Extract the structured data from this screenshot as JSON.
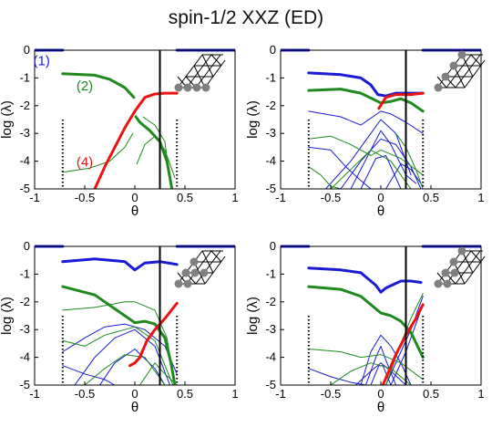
{
  "title": "spin-1/2 XXZ (ED)",
  "colors": {
    "blue": "#1a1ad6",
    "green": "#1e8a1e",
    "red": "#ee1111",
    "black": "#000000",
    "lattice": "#808080"
  },
  "chart_data": [
    {
      "type": "line",
      "xlabel": "θ",
      "ylabel": "log (λ)",
      "xlim": [
        -1,
        1
      ],
      "ylim": [
        -5,
        0
      ],
      "xticks": [
        "-1",
        "-0.5",
        "0",
        "0.5",
        "1"
      ],
      "yticks": [
        "0",
        "-1",
        "-2",
        "-3",
        "-4",
        "-5"
      ],
      "vlines": {
        "dotted": [
          -0.72,
          0.42
        ],
        "solid": 0.25
      },
      "annotations": [
        {
          "text": "(1)",
          "x": -0.93,
          "y": -0.55,
          "color": "blue"
        },
        {
          "text": "(2)",
          "x": -0.5,
          "y": -1.45,
          "color": "green"
        },
        {
          "text": "(4)",
          "x": -0.5,
          "y": -4.2,
          "color": "red"
        }
      ],
      "series": [
        {
          "color": "blue",
          "width": 3,
          "x": [
            -1,
            -0.72
          ],
          "y": [
            0,
            0
          ]
        },
        {
          "color": "blue",
          "width": 3,
          "x": [
            0.42,
            1
          ],
          "y": [
            0,
            0
          ]
        },
        {
          "color": "green",
          "width": 3,
          "x": [
            -0.72,
            -0.4,
            -0.25,
            -0.1,
            -0.01
          ],
          "y": [
            -0.85,
            -0.9,
            -1.05,
            -1.35,
            -1.7
          ]
        },
        {
          "color": "green",
          "width": 3,
          "x": [
            0.01,
            0.05,
            0.15,
            0.25,
            0.32,
            0.37
          ],
          "y": [
            -2.4,
            -2.6,
            -2.9,
            -3.3,
            -4.0,
            -5
          ]
        },
        {
          "color": "red",
          "width": 3,
          "x": [
            -0.4,
            -0.3,
            -0.2,
            -0.1,
            0,
            0.1,
            0.2,
            0.3,
            0.42
          ],
          "y": [
            -5,
            -4.2,
            -3.5,
            -2.8,
            -2.2,
            -1.7,
            -1.58,
            -1.55,
            -1.55
          ]
        },
        {
          "color": "green",
          "width": 1,
          "x": [
            -0.72,
            -0.45,
            -0.25,
            -0.1,
            -0.02
          ],
          "y": [
            -4.4,
            -4.25,
            -4.0,
            -3.5,
            -3.0
          ]
        },
        {
          "color": "green",
          "width": 1,
          "x": [
            0.02,
            0.1,
            0.2,
            0.3,
            0.4
          ],
          "y": [
            -4.1,
            -3.4,
            -3.1,
            -3.6,
            -4.6
          ]
        },
        {
          "color": "green",
          "width": 1,
          "x": [
            0.08,
            0.2,
            0.3,
            0.36
          ],
          "y": [
            -2.4,
            -2.7,
            -3.3,
            -5
          ]
        }
      ]
    },
    {
      "type": "line",
      "xlabel": "θ",
      "ylabel": "log (λ)",
      "xlim": [
        -1,
        1
      ],
      "ylim": [
        -5,
        0
      ],
      "xticks": [
        "-1",
        "-0.5",
        "0",
        "0.5",
        "1"
      ],
      "yticks": [
        "0",
        "-1",
        "-2",
        "-3",
        "-4",
        "-5"
      ],
      "vlines": {
        "dotted": [
          -0.72,
          0.42
        ],
        "solid": 0.25
      },
      "annotations": [],
      "series": [
        {
          "color": "blue",
          "width": 3,
          "x": [
            -1,
            -0.72
          ],
          "y": [
            0,
            0
          ]
        },
        {
          "color": "blue",
          "width": 3,
          "x": [
            0.42,
            1
          ],
          "y": [
            0,
            0
          ]
        },
        {
          "color": "blue",
          "width": 3,
          "x": [
            -0.72,
            -0.4,
            -0.2,
            -0.1,
            -0.03,
            0.05,
            0.15,
            0.3,
            0.42
          ],
          "y": [
            -0.82,
            -0.88,
            -1.0,
            -1.25,
            -1.6,
            -1.65,
            -1.55,
            -1.55,
            -1.55
          ]
        },
        {
          "color": "green",
          "width": 3,
          "x": [
            -0.72,
            -0.4,
            -0.2,
            0,
            0.1,
            0.2,
            0.3,
            0.42
          ],
          "y": [
            -1.45,
            -1.4,
            -1.55,
            -1.9,
            -1.85,
            -1.75,
            -1.9,
            -2.2
          ]
        },
        {
          "color": "red",
          "width": 3,
          "x": [
            -0.02,
            0.05,
            0.15,
            0.3,
            0.42
          ],
          "y": [
            -2.1,
            -1.7,
            -1.6,
            -1.6,
            -1.55
          ]
        },
        {
          "color": "blue",
          "width": 1,
          "x": [
            -0.72,
            -0.4,
            -0.2,
            0,
            0.1,
            0.25,
            0.42
          ],
          "y": [
            -2.2,
            -2.4,
            -2.7,
            -2.2,
            -2.3,
            -2.6,
            -3.0
          ]
        },
        {
          "color": "blue",
          "width": 1,
          "x": [
            -0.55,
            -0.3,
            -0.1,
            0,
            0.15,
            0.3
          ],
          "y": [
            -5,
            -4.0,
            -3.0,
            -2.5,
            -3.0,
            -4.5
          ]
        },
        {
          "color": "blue",
          "width": 1,
          "x": [
            -0.4,
            -0.2,
            0,
            0.15,
            0.3,
            0.4
          ],
          "y": [
            -5,
            -4.0,
            -3.2,
            -3.4,
            -4.2,
            -5
          ]
        },
        {
          "color": "blue",
          "width": 1,
          "x": [
            -0.2,
            -0.05,
            0.05,
            0.2
          ],
          "y": [
            -5,
            -3.9,
            -3.8,
            -5
          ]
        },
        {
          "color": "blue",
          "width": 1,
          "x": [
            -0.3,
            -0.1,
            0,
            0.1,
            0.25,
            0.35
          ],
          "y": [
            -5,
            -3.6,
            -2.9,
            -3.4,
            -4.5,
            -4.8
          ]
        },
        {
          "color": "blue",
          "width": 1,
          "x": [
            -0.72,
            -0.5,
            -0.35,
            -0.2,
            -0.1
          ],
          "y": [
            -3.5,
            -3.6,
            -4.2,
            -4.7,
            -5
          ]
        },
        {
          "color": "blue",
          "width": 1,
          "x": [
            0.05,
            0.2,
            0.3,
            0.42
          ],
          "y": [
            -5,
            -4.1,
            -4.3,
            -4.9
          ]
        },
        {
          "color": "green",
          "width": 1,
          "x": [
            -0.72,
            -0.5,
            -0.3,
            -0.1,
            0,
            0.2,
            0.42
          ],
          "y": [
            -3.2,
            -3.1,
            -3.4,
            -3.8,
            -3.6,
            -3.9,
            -4.5
          ]
        },
        {
          "color": "green",
          "width": 1,
          "x": [
            -0.5,
            -0.3,
            -0.1,
            0.1,
            0.3
          ],
          "y": [
            -5,
            -4.3,
            -3.6,
            -4.0,
            -5
          ]
        },
        {
          "color": "green",
          "width": 1,
          "x": [
            -0.72,
            -0.6,
            -0.5,
            -0.4
          ],
          "y": [
            -4.2,
            -4.5,
            -4.9,
            -5
          ]
        },
        {
          "color": "green",
          "width": 1,
          "x": [
            0.15,
            0.25,
            0.35,
            0.42
          ],
          "y": [
            -3.0,
            -3.5,
            -4.3,
            -5
          ]
        }
      ]
    },
    {
      "type": "line",
      "xlabel": "θ",
      "ylabel": "log (λ)",
      "xlim": [
        -1,
        1
      ],
      "ylim": [
        -5,
        0
      ],
      "xticks": [
        "-1",
        "-0.5",
        "0",
        "0.5",
        "1"
      ],
      "yticks": [
        "0",
        "-1",
        "-2",
        "-3",
        "-4",
        "-5"
      ],
      "vlines": {
        "dotted": [
          -0.72,
          0.42
        ],
        "solid": 0.25
      },
      "annotations": [],
      "series": [
        {
          "color": "blue",
          "width": 3,
          "x": [
            -1,
            -0.72
          ],
          "y": [
            0,
            0
          ]
        },
        {
          "color": "blue",
          "width": 3,
          "x": [
            0.42,
            1
          ],
          "y": [
            0,
            0
          ]
        },
        {
          "color": "blue",
          "width": 3,
          "x": [
            -0.72,
            -0.4,
            -0.1,
            0,
            0.1,
            0.25,
            0.42
          ],
          "y": [
            -0.55,
            -0.45,
            -0.55,
            -0.85,
            -0.6,
            -0.55,
            -0.65
          ]
        },
        {
          "color": "green",
          "width": 3,
          "x": [
            -0.72,
            -0.4,
            -0.1,
            0,
            0.1,
            0.2,
            0.3,
            0.36,
            0.4
          ],
          "y": [
            -1.45,
            -1.75,
            -2.5,
            -2.75,
            -2.7,
            -2.8,
            -3.3,
            -4.2,
            -5
          ]
        },
        {
          "color": "red",
          "width": 3,
          "x": [
            -0.05,
            0,
            0.05,
            0.12,
            0.2,
            0.3,
            0.42
          ],
          "y": [
            -4.3,
            -4.2,
            -4.0,
            -3.4,
            -3.0,
            -2.6,
            -2.05
          ]
        },
        {
          "color": "blue",
          "width": 1,
          "x": [
            -0.72,
            -0.5,
            -0.3,
            -0.1,
            0,
            0.1,
            0.3,
            0.42
          ],
          "y": [
            -3.8,
            -3.3,
            -2.9,
            -2.8,
            -2.9,
            -3.0,
            -3.6,
            -4.6
          ]
        },
        {
          "color": "blue",
          "width": 1,
          "x": [
            -0.6,
            -0.4,
            -0.2,
            0,
            0.2,
            0.35
          ],
          "y": [
            -5,
            -4.0,
            -3.3,
            -3.0,
            -3.6,
            -5
          ]
        },
        {
          "color": "blue",
          "width": 1,
          "x": [
            -0.35,
            -0.2,
            0,
            0.2,
            0.3
          ],
          "y": [
            -5,
            -4.2,
            -3.7,
            -4.4,
            -5
          ]
        },
        {
          "color": "blue",
          "width": 1,
          "x": [
            -0.72,
            -0.5,
            -0.3,
            -0.2
          ],
          "y": [
            -4.3,
            -4.6,
            -4.8,
            -5
          ]
        },
        {
          "color": "green",
          "width": 1,
          "x": [
            -0.72,
            -0.4,
            -0.1,
            0,
            0.2,
            0.32,
            0.4
          ],
          "y": [
            -2.3,
            -2.2,
            -2.0,
            -2.0,
            -2.3,
            -3.3,
            -5
          ]
        },
        {
          "color": "green",
          "width": 1,
          "x": [
            -0.72,
            -0.5,
            -0.3,
            -0.1,
            0,
            0.2,
            0.38
          ],
          "y": [
            -3.4,
            -3.6,
            -3.2,
            -3.0,
            -2.9,
            -3.4,
            -5
          ]
        },
        {
          "color": "green",
          "width": 1,
          "x": [
            -0.5,
            -0.3,
            -0.1,
            0.1,
            0.3
          ],
          "y": [
            -5,
            -4.4,
            -3.9,
            -4.0,
            -5
          ]
        },
        {
          "color": "green",
          "width": 1,
          "x": [
            0.05,
            0.2,
            0.3,
            0.42
          ],
          "y": [
            -5,
            -4.2,
            -4.6,
            -5
          ]
        }
      ]
    },
    {
      "type": "line",
      "xlabel": "θ",
      "ylabel": "log (λ)",
      "xlim": [
        -1,
        1
      ],
      "ylim": [
        -5,
        0
      ],
      "xticks": [
        "-1",
        "-0.5",
        "0",
        "0.5",
        "1"
      ],
      "yticks": [
        "0",
        "-1",
        "-2",
        "-3",
        "-4",
        "-5"
      ],
      "vlines": {
        "dotted": [
          -0.72,
          0.42
        ],
        "solid": 0.25
      },
      "annotations": [],
      "series": [
        {
          "color": "blue",
          "width": 3,
          "x": [
            -1,
            -0.72
          ],
          "y": [
            0,
            0
          ]
        },
        {
          "color": "blue",
          "width": 3,
          "x": [
            0.42,
            1
          ],
          "y": [
            0,
            0
          ]
        },
        {
          "color": "blue",
          "width": 3,
          "x": [
            -0.72,
            -0.4,
            -0.2,
            -0.05,
            0,
            0.05,
            0.2,
            0.3,
            0.4
          ],
          "y": [
            -0.78,
            -0.85,
            -0.95,
            -1.4,
            -1.65,
            -1.5,
            -1.25,
            -1.25,
            -1.3
          ]
        },
        {
          "color": "green",
          "width": 3,
          "x": [
            -0.72,
            -0.4,
            -0.2,
            0,
            0.1,
            0.2,
            0.3,
            0.42
          ],
          "y": [
            -1.45,
            -1.55,
            -1.8,
            -2.4,
            -2.5,
            -2.7,
            -3.1,
            -4.0
          ]
        },
        {
          "color": "red",
          "width": 3,
          "x": [
            0.02,
            0.08,
            0.15,
            0.25,
            0.35,
            0.42
          ],
          "y": [
            -5,
            -4.5,
            -3.9,
            -3.2,
            -2.6,
            -2.1
          ]
        },
        {
          "color": "blue",
          "width": 1,
          "x": [
            -0.2,
            -0.1,
            0,
            0.1,
            0.2,
            0.3
          ],
          "y": [
            -5,
            -3.8,
            -3.2,
            -3.6,
            -4.2,
            -5
          ]
        },
        {
          "color": "blue",
          "width": 1,
          "x": [
            -0.15,
            -0.05,
            0,
            0.05,
            0.15
          ],
          "y": [
            -5,
            -4.0,
            -3.6,
            -4.1,
            -5
          ]
        },
        {
          "color": "blue",
          "width": 1,
          "x": [
            -0.1,
            -0.02,
            0.02,
            0.1
          ],
          "y": [
            -5,
            -4.3,
            -4.3,
            -5
          ]
        },
        {
          "color": "blue",
          "width": 1,
          "x": [
            -0.25,
            -0.1,
            0,
            0.1,
            0.25
          ],
          "y": [
            -5,
            -4.5,
            -4.2,
            -4.5,
            -5
          ]
        },
        {
          "color": "blue",
          "width": 1,
          "x": [
            0.05,
            0.2,
            0.3,
            0.42
          ],
          "y": [
            -5,
            -3.8,
            -3.0,
            -1.8
          ]
        },
        {
          "color": "blue",
          "width": 1,
          "x": [
            0.1,
            0.25,
            0.35,
            0.42
          ],
          "y": [
            -5,
            -3.8,
            -2.8,
            -2.1
          ]
        },
        {
          "color": "blue",
          "width": 1,
          "x": [
            -0.72,
            -0.5,
            -0.3,
            -0.15
          ],
          "y": [
            -4.4,
            -4.7,
            -4.9,
            -5
          ]
        },
        {
          "color": "green",
          "width": 1,
          "x": [
            -0.72,
            -0.4,
            -0.2,
            0,
            0.2,
            0.42
          ],
          "y": [
            -3.7,
            -3.8,
            -4.0,
            -3.9,
            -4.2,
            -4.8
          ]
        },
        {
          "color": "green",
          "width": 1,
          "x": [
            -0.5,
            -0.3,
            -0.1,
            0.1,
            0.3
          ],
          "y": [
            -5,
            -4.5,
            -4.2,
            -4.4,
            -5
          ]
        },
        {
          "color": "green",
          "width": 1,
          "x": [
            0.05,
            0.2,
            0.3,
            0.42
          ],
          "y": [
            -5,
            -3.5,
            -2.6,
            -1.7
          ]
        }
      ]
    }
  ]
}
